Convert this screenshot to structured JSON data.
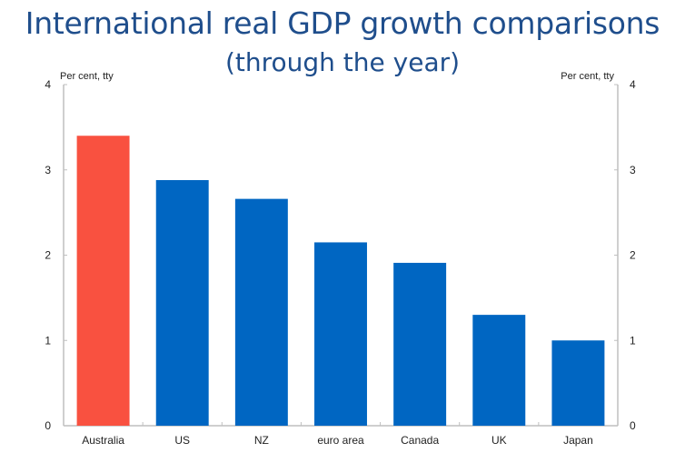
{
  "chart_data": {
    "type": "bar",
    "title": "International real GDP growth comparisons",
    "subtitle": "(through the year)",
    "xlabel": "",
    "ylabel": "Per cent, tty",
    "ylabel_right": "Per cent, tty",
    "ylim": [
      0,
      4
    ],
    "yticks": [
      0,
      1,
      2,
      3,
      4
    ],
    "grid": false,
    "legend": "none",
    "categories": [
      "Australia",
      "US",
      "NZ",
      "euro area",
      "Canada",
      "UK",
      "Japan"
    ],
    "values": [
      3.4,
      2.88,
      2.66,
      2.15,
      1.91,
      1.3,
      1.0
    ],
    "highlight_color": "#f95140",
    "bar_color": "#0066c2",
    "highlight_category": "Australia"
  }
}
